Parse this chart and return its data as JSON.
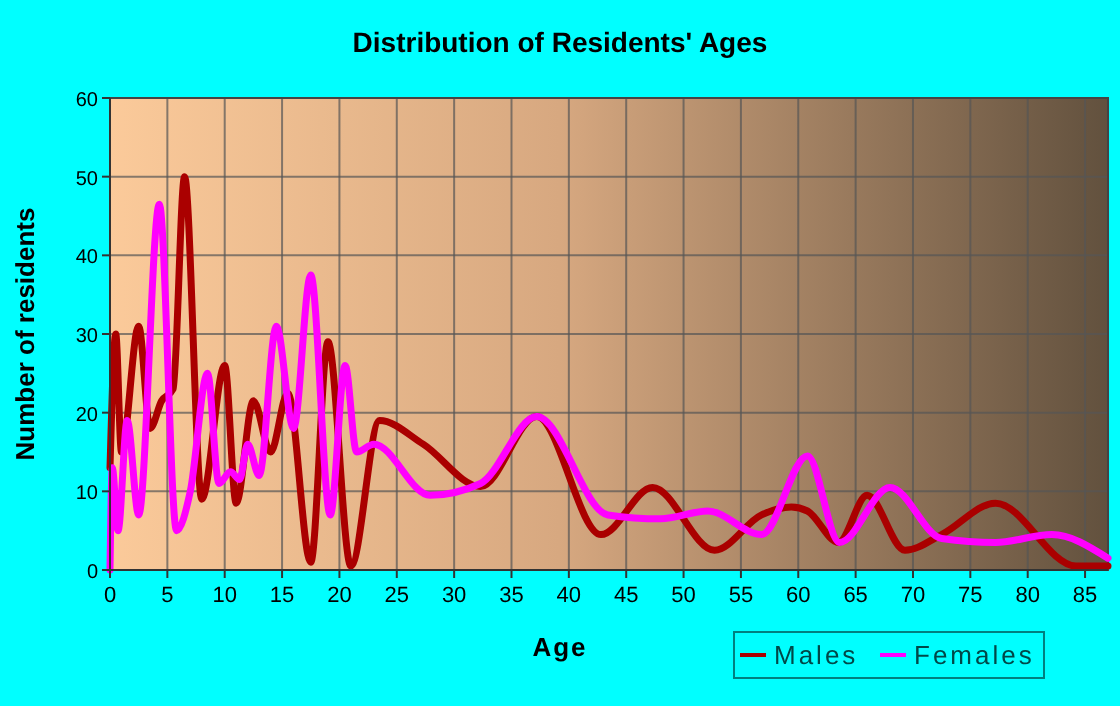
{
  "chart_data": {
    "type": "line",
    "title": "Distribution of Residents' Ages",
    "xlabel": "Age",
    "ylabel": "Number of residents",
    "xlim": [
      0,
      87
    ],
    "xticks": [
      0,
      5,
      10,
      15,
      20,
      25,
      30,
      35,
      40,
      45,
      50,
      55,
      60,
      65,
      70,
      75,
      80,
      85
    ],
    "ylim": [
      0,
      60
    ],
    "yticks": [
      0,
      10,
      20,
      30,
      40,
      50,
      60
    ],
    "grid": true,
    "legend": "bottom right",
    "marker": "none",
    "line_style": "solid",
    "series": [
      {
        "name": "Males",
        "color": "#aa0000",
        "x": [
          0,
          0.5,
          1,
          2.5,
          3.5,
          4.5,
          5.5,
          6.5,
          8,
          10,
          11,
          12.5,
          14,
          15.5,
          17.5,
          19,
          21,
          23.5,
          27.3,
          32.3,
          37.2,
          42.8,
          47.3,
          52.7,
          56.8,
          59.4,
          60.8,
          63.5,
          66,
          69.3,
          72.5,
          77.2,
          84.2,
          87
        ],
        "values": [
          13,
          30,
          15,
          31,
          18,
          21.5,
          23,
          50,
          9,
          26,
          8.5,
          21.5,
          15,
          22.5,
          1,
          29,
          0.5,
          19,
          16,
          10.6,
          19.5,
          4.5,
          10.5,
          2.5,
          7,
          8,
          7.5,
          3.5,
          9.5,
          2.5,
          4.5,
          8.5,
          0.5,
          0.5
        ]
      },
      {
        "name": "Females",
        "color": "#ff00ff",
        "x": [
          0,
          0.2,
          0.7,
          1.5,
          2.5,
          4.3,
          5.8,
          7,
          8.5,
          9.5,
          10.5,
          11.3,
          12,
          13,
          14.5,
          16,
          17.5,
          19.2,
          20.5,
          21.5,
          23,
          27.9,
          32.3,
          37.2,
          43.4,
          48,
          52.1,
          56.8,
          60.8,
          63.6,
          68,
          72.5,
          77.2,
          82.1,
          87
        ],
        "values": [
          0,
          13,
          5,
          19,
          7,
          46.5,
          5,
          10,
          25,
          11,
          12.5,
          11.5,
          16,
          12,
          31,
          18,
          37.5,
          7,
          26,
          15,
          16,
          9.5,
          11,
          19.5,
          7,
          6.5,
          7.5,
          4.5,
          14.5,
          3.5,
          10.5,
          4,
          3.5,
          4.5,
          1.5
        ]
      }
    ]
  }
}
